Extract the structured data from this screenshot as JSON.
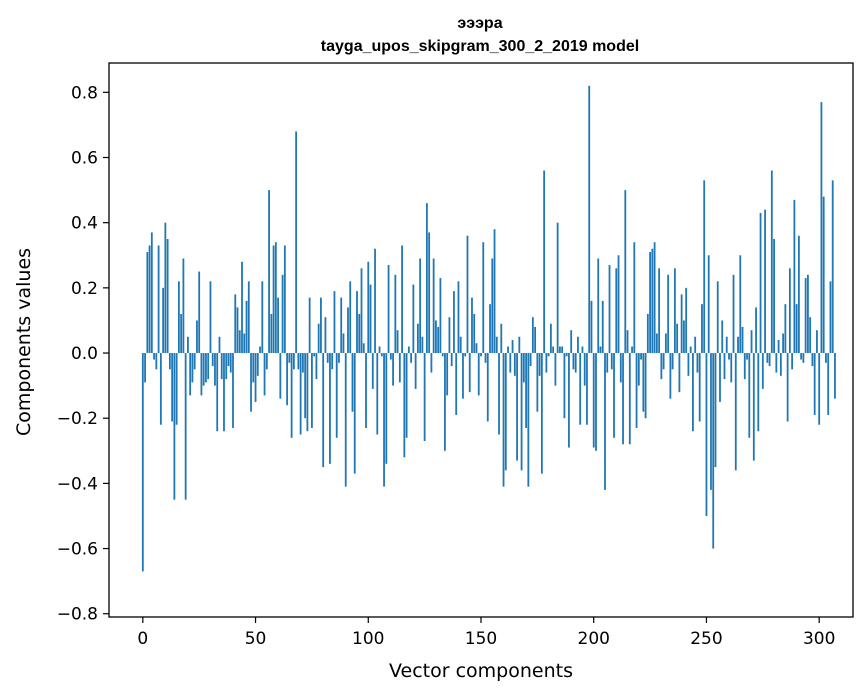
{
  "chart_data": {
    "type": "bar",
    "title_line1": "эээра",
    "title_line2": "tayga_upos_skipgram_300_2_2019 model",
    "xlabel": "Vector components",
    "ylabel": "Components values",
    "xlim": [
      -15,
      315
    ],
    "ylim": [
      -0.81,
      0.89
    ],
    "xticks": [
      0,
      50,
      100,
      150,
      200,
      250,
      300
    ],
    "yticks": [
      -0.8,
      -0.6,
      -0.4,
      -0.2,
      0.0,
      0.2,
      0.4,
      0.6,
      0.8
    ],
    "ytick_labels": [
      "−0.8",
      "−0.6",
      "−0.4",
      "−0.2",
      "0.0",
      "0.2",
      "0.4",
      "0.6",
      "0.8"
    ],
    "bar_color": "#1f77b4",
    "values": [
      -0.67,
      -0.09,
      0.31,
      0.33,
      0.37,
      -0.02,
      -0.05,
      0.33,
      -0.22,
      0.2,
      0.4,
      0.35,
      -0.05,
      -0.21,
      -0.45,
      -0.22,
      0.22,
      0.12,
      0.29,
      -0.45,
      0.05,
      -0.13,
      -0.09,
      -0.05,
      0.1,
      0.25,
      -0.13,
      -0.1,
      -0.09,
      -0.08,
      0.22,
      -0.04,
      -0.1,
      -0.24,
      0.05,
      -0.08,
      -0.24,
      -0.08,
      -0.04,
      -0.06,
      -0.23,
      0.18,
      0.14,
      0.07,
      0.28,
      0.06,
      0.16,
      0.22,
      -0.18,
      -0.09,
      -0.15,
      -0.07,
      0.02,
      0.22,
      -0.13,
      -0.05,
      0.5,
      0.12,
      0.33,
      0.34,
      0.17,
      -0.14,
      0.24,
      0.33,
      -0.16,
      -0.03,
      -0.26,
      -0.05,
      0.68,
      -0.05,
      -0.25,
      -0.06,
      -0.2,
      -0.24,
      0.17,
      -0.23,
      -0.01,
      -0.08,
      0.09,
      0.17,
      -0.35,
      0.11,
      -0.03,
      -0.34,
      -0.05,
      0.19,
      -0.26,
      -0.03,
      0.17,
      0.06,
      -0.41,
      0.14,
      0.22,
      -0.18,
      -0.37,
      0.19,
      0.12,
      0.26,
      0.03,
      -0.23,
      0.28,
      0.21,
      -0.11,
      0.32,
      -0.25,
      0.02,
      -0.01,
      -0.41,
      -0.34,
      0.27,
      -0.02,
      -0.1,
      0.24,
      0.07,
      -0.09,
      0.33,
      -0.32,
      -0.26,
      0.02,
      -0.03,
      0.21,
      -0.11,
      0.09,
      0.29,
      0.05,
      -0.27,
      0.46,
      0.37,
      -0.06,
      0.29,
      0.1,
      0.08,
      0.23,
      -0.01,
      -0.3,
      -0.13,
      0.11,
      -0.04,
      0.19,
      -0.19,
      0.22,
      0.05,
      -0.14,
      -0.01,
      0.36,
      -0.12,
      0.17,
      0.12,
      0.03,
      -0.13,
      -0.01,
      0.34,
      -0.03,
      -0.21,
      0.15,
      0.29,
      0.38,
      0.05,
      -0.25,
      0.09,
      -0.41,
      -0.36,
      0.02,
      -0.06,
      0.04,
      -0.07,
      -0.33,
      0.05,
      -0.36,
      -0.09,
      -0.23,
      -0.41,
      -0.04,
      0.11,
      0.08,
      -0.18,
      -0.07,
      -0.37,
      0.56,
      -0.06,
      -0.01,
      0.09,
      0.02,
      -0.1,
      0.4,
      0.02,
      0.02,
      -0.2,
      -0.01,
      -0.29,
      0.07,
      -0.05,
      -0.06,
      0.05,
      -0.22,
      0.02,
      -0.1,
      -0.22,
      0.82,
      0.16,
      -0.29,
      -0.3,
      0.29,
      0.02,
      0.16,
      -0.42,
      -0.06,
      0.27,
      -0.05,
      -0.26,
      0.26,
      0.3,
      -0.09,
      -0.28,
      0.5,
      0.07,
      -0.28,
      0.02,
      0.34,
      -0.23,
      -0.1,
      -0.02,
      -0.18,
      -0.2,
      0.12,
      0.31,
      0.32,
      0.34,
      0.06,
      0.26,
      -0.08,
      -0.05,
      0.06,
      0.24,
      -0.14,
      -0.05,
      0.26,
      0.09,
      -0.12,
      0.18,
      0.1,
      0.2,
      -0.07,
      0.02,
      -0.24,
      0.05,
      -0.06,
      -0.21,
      0.15,
      0.53,
      -0.5,
      0.3,
      -0.42,
      -0.6,
      -0.35,
      0.22,
      -0.15,
      0.1,
      -0.08,
      0.05,
      -0.02,
      -0.09,
      0.24,
      -0.36,
      0.05,
      0.3,
      0.08,
      -0.08,
      -0.02,
      -0.26,
      0.07,
      -0.33,
      0.14,
      -0.24,
      0.43,
      -0.11,
      0.44,
      -0.03,
      -0.04,
      0.56,
      0.35,
      -0.06,
      0.04,
      -0.07,
      0.06,
      0.15,
      -0.21,
      0.26,
      -0.05,
      0.47,
      0.15,
      0.36,
      -0.02,
      -0.03,
      0.23,
      0.24,
      0.11,
      -0.04,
      -0.19,
      0.07,
      -0.22,
      0.77,
      0.48,
      -0.03,
      -0.19,
      0.22,
      0.53,
      -0.14
    ]
  }
}
